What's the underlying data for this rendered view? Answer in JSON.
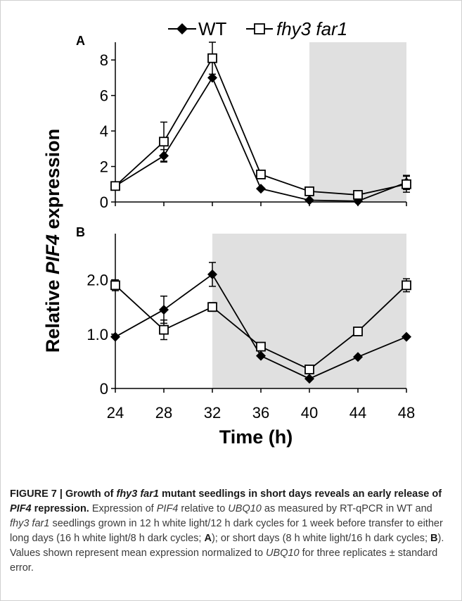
{
  "legend": {
    "wt_label": "WT",
    "mutant_label": "fhy3 far1"
  },
  "chart_data": [
    {
      "panel": "A",
      "type": "line",
      "ylim": [
        0,
        9
      ],
      "yticks": [
        "0",
        "2",
        "4",
        "6",
        "8"
      ],
      "shaded_interval": [
        40,
        48
      ],
      "series": [
        {
          "name": "WT",
          "marker": "filled-diamond",
          "x": [
            24,
            28,
            32,
            36,
            40,
            44,
            48
          ],
          "y": [
            0.9,
            2.6,
            7.0,
            0.75,
            0.1,
            0.05,
            1.1
          ],
          "err": [
            0,
            0.35,
            0,
            0,
            0,
            0,
            0.4
          ]
        },
        {
          "name": "fhy3 far1",
          "marker": "open-square",
          "x": [
            24,
            28,
            32,
            36,
            40,
            44,
            48
          ],
          "y": [
            0.9,
            3.4,
            8.1,
            1.55,
            0.6,
            0.4,
            1.0
          ],
          "err": [
            0,
            1.1,
            0.9,
            0,
            0,
            0,
            0.45
          ]
        }
      ]
    },
    {
      "panel": "B",
      "type": "line",
      "ylim": [
        0,
        2.85
      ],
      "yticks": [
        "0",
        "1.0",
        "2.0"
      ],
      "shaded_interval": [
        32,
        48
      ],
      "series": [
        {
          "name": "WT",
          "marker": "filled-diamond",
          "x": [
            24,
            28,
            32,
            36,
            40,
            44,
            48
          ],
          "y": [
            0.95,
            1.45,
            2.1,
            0.6,
            0.18,
            0.58,
            0.95
          ],
          "err": [
            0,
            0.25,
            0.22,
            0,
            0,
            0,
            0
          ]
        },
        {
          "name": "fhy3 far1",
          "marker": "open-square",
          "x": [
            24,
            28,
            32,
            36,
            40,
            44,
            48
          ],
          "y": [
            1.9,
            1.08,
            1.5,
            0.77,
            0.35,
            1.05,
            1.9
          ],
          "err": [
            0.1,
            0.18,
            0.08,
            0,
            0,
            0,
            0.12
          ]
        }
      ]
    }
  ],
  "x_axis": {
    "ticks": [
      "24",
      "28",
      "32",
      "36",
      "40",
      "44",
      "48"
    ],
    "label": "Time (h)"
  },
  "y_axis_label": {
    "prefix": "Relative ",
    "gene": "PIF4",
    "suffix": " expression"
  },
  "caption": {
    "figure_label": "FIGURE 7 | Growth of ",
    "mutant": "fhy3 far1",
    "title_mid": " mutant seedlings in short days reveals an early release of ",
    "gene": "PIF4",
    "title_end": " repression.",
    "t1": " Expression of ",
    "t2": " relative to ",
    "ref_gene": "UBQ10",
    "t3": " as measured by RT-qPCR in WT and ",
    "t4": " seedlings grown in 12 h white light/12 h dark cycles for 1 week before transfer to either long days (16 h white light/8 h dark cycles; ",
    "panel_a": "A",
    "t5": "); or short days (8 h white light/16 h dark cycles; ",
    "panel_b": "B",
    "t6": "). Values shown represent mean expression normalized to ",
    "t7": " for three replicates ± standard error."
  },
  "colors": {
    "shade": "#e0e0e0",
    "line": "#000000",
    "frame": "#cfcfcf"
  }
}
